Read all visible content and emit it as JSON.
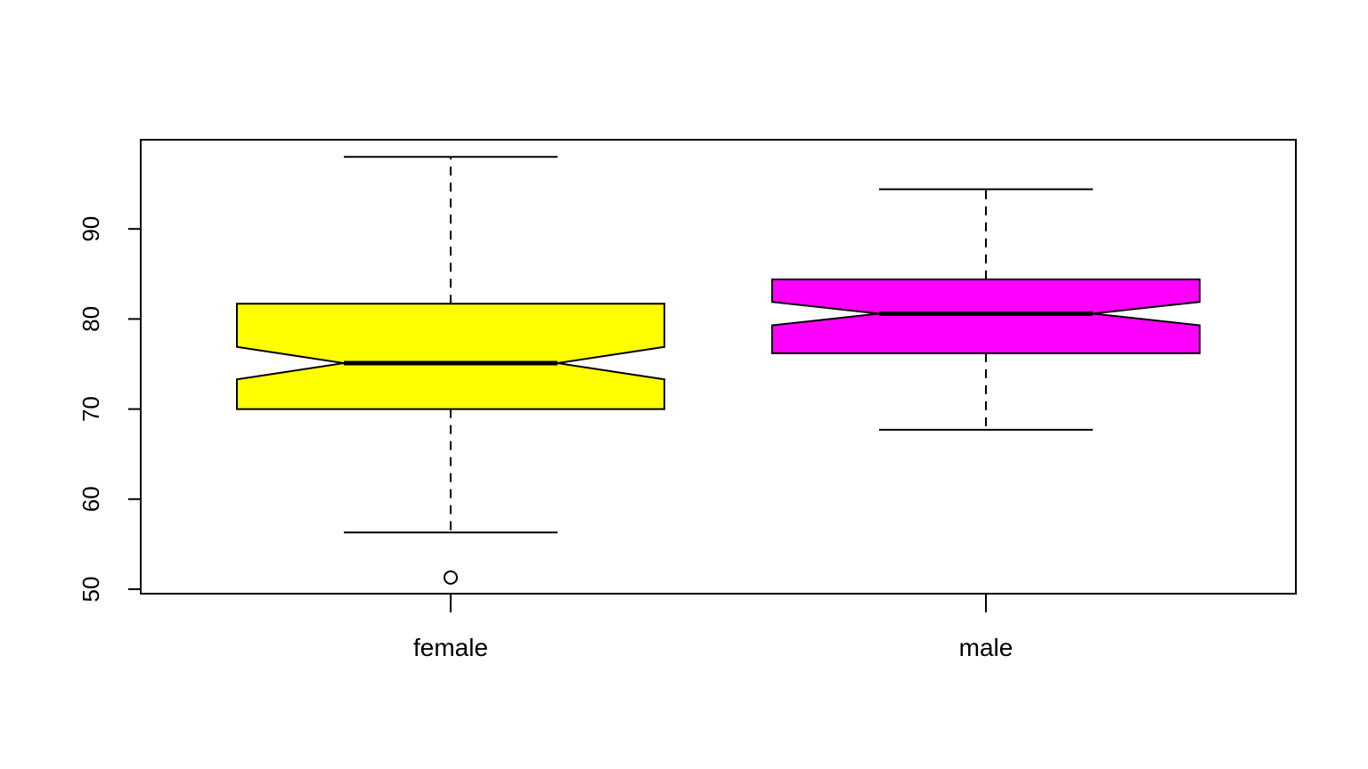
{
  "chart_data": {
    "type": "boxplot",
    "notched": true,
    "categories": [
      "female",
      "male"
    ],
    "y_ticks": [
      50,
      60,
      70,
      80,
      90
    ],
    "ylim": [
      49.5,
      100
    ],
    "grid": false,
    "legend": "none",
    "boxes": [
      {
        "category": "female",
        "color": "#FFFF00",
        "whisker_low": 56.3,
        "q1": 70.0,
        "median": 75.1,
        "q3": 81.7,
        "whisker_high": 98.0,
        "notch_low": 73.3,
        "notch_high": 76.9,
        "outliers": [
          51.3
        ]
      },
      {
        "category": "male",
        "color": "#FF00FF",
        "whisker_low": 67.7,
        "q1": 76.2,
        "median": 80.6,
        "q3": 84.4,
        "whisker_high": 94.4,
        "notch_low": 79.3,
        "notch_high": 81.9,
        "outliers": []
      }
    ]
  }
}
